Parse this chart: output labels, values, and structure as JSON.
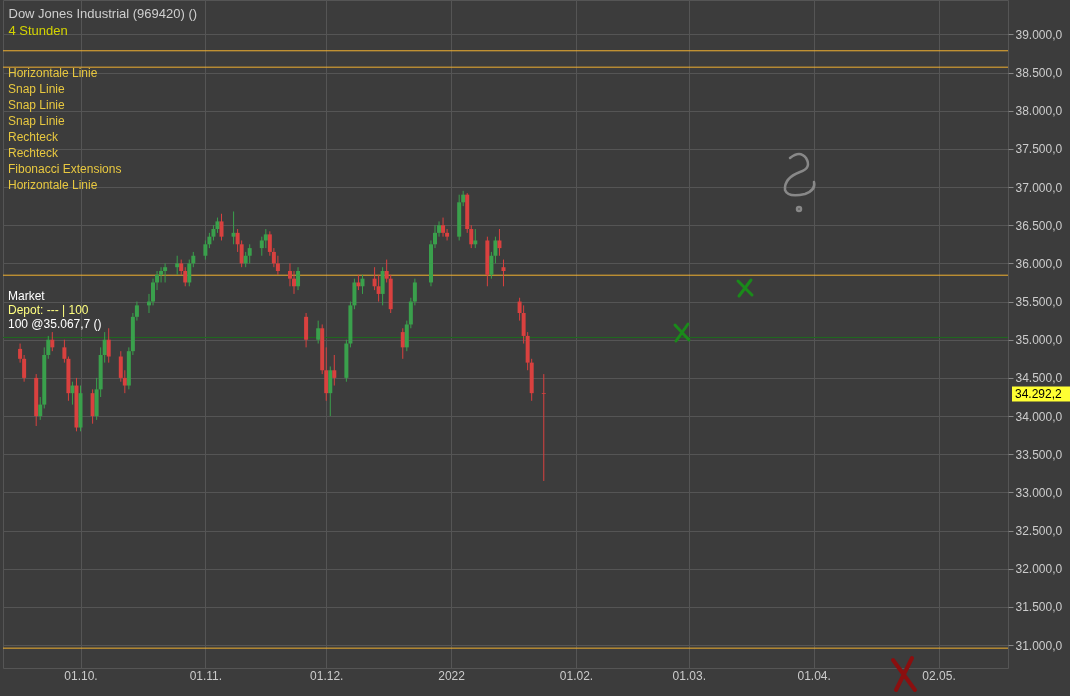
{
  "chart_data": {
    "type": "candlestick",
    "title": "Dow Jones Industrial (969420) ()",
    "subtitle": "4 Stunden",
    "x": [
      "2021-09-16",
      "2021-09-17",
      "2021-09-20",
      "2021-09-21",
      "2021-09-22",
      "2021-09-23",
      "2021-09-24",
      "2021-09-27",
      "2021-09-28",
      "2021-09-29",
      "2021-09-30",
      "2021-10-01",
      "2021-10-04",
      "2021-10-05",
      "2021-10-06",
      "2021-10-07",
      "2021-10-08",
      "2021-10-11",
      "2021-10-12",
      "2021-10-13",
      "2021-10-14",
      "2021-10-15",
      "2021-10-18",
      "2021-10-19",
      "2021-10-20",
      "2021-10-21",
      "2021-10-22",
      "2021-10-25",
      "2021-10-26",
      "2021-10-27",
      "2021-10-28",
      "2021-10-29",
      "2021-11-01",
      "2021-11-02",
      "2021-11-03",
      "2021-11-04",
      "2021-11-05",
      "2021-11-08",
      "2021-11-09",
      "2021-11-10",
      "2021-11-11",
      "2021-11-12",
      "2021-11-15",
      "2021-11-16",
      "2021-11-17",
      "2021-11-18",
      "2021-11-19",
      "2021-11-22",
      "2021-11-23",
      "2021-11-24",
      "2021-11-26",
      "2021-11-29",
      "2021-11-30",
      "2021-12-01",
      "2021-12-02",
      "2021-12-03",
      "2021-12-06",
      "2021-12-07",
      "2021-12-08",
      "2021-12-09",
      "2021-12-10",
      "2021-12-13",
      "2021-12-14",
      "2021-12-15",
      "2021-12-16",
      "2021-12-17",
      "2021-12-20",
      "2021-12-21",
      "2021-12-22",
      "2021-12-23",
      "2021-12-27",
      "2021-12-28",
      "2021-12-29",
      "2021-12-30",
      "2021-12-31",
      "2022-01-03",
      "2022-01-04",
      "2022-01-05",
      "2022-01-06",
      "2022-01-07",
      "2022-01-10",
      "2022-01-11",
      "2022-01-12",
      "2022-01-13",
      "2022-01-14",
      "2022-01-18",
      "2022-01-19",
      "2022-01-20",
      "2022-01-21",
      "2022-01-24"
    ],
    "ohlc": [
      [
        34880,
        34950,
        34700,
        34750
      ],
      [
        34750,
        34800,
        34450,
        34500
      ],
      [
        34500,
        34550,
        33870,
        34000
      ],
      [
        34000,
        34250,
        33950,
        34150
      ],
      [
        34150,
        34900,
        34100,
        34800
      ],
      [
        34800,
        35050,
        34750,
        35000
      ],
      [
        35000,
        35100,
        34850,
        34900
      ],
      [
        34900,
        35000,
        34700,
        34750
      ],
      [
        34750,
        34780,
        34200,
        34300
      ],
      [
        34300,
        34450,
        34150,
        34400
      ],
      [
        34400,
        34500,
        33800,
        33850
      ],
      [
        33850,
        34400,
        33800,
        34300
      ],
      [
        34300,
        34350,
        33900,
        34000
      ],
      [
        34000,
        34500,
        33950,
        34350
      ],
      [
        34350,
        34900,
        34250,
        34800
      ],
      [
        34800,
        35100,
        34700,
        35000
      ],
      [
        35000,
        35150,
        34700,
        34780
      ],
      [
        34780,
        34850,
        34450,
        34500
      ],
      [
        34500,
        34600,
        34300,
        34400
      ],
      [
        34400,
        34900,
        34350,
        34850
      ],
      [
        34850,
        35350,
        34800,
        35300
      ],
      [
        35300,
        35500,
        35250,
        35450
      ],
      [
        35450,
        35600,
        35350,
        35500
      ],
      [
        35500,
        35800,
        35450,
        35750
      ],
      [
        35750,
        35900,
        35650,
        35850
      ],
      [
        35850,
        35950,
        35750,
        35900
      ],
      [
        35900,
        36000,
        35750,
        35950
      ],
      [
        35950,
        36100,
        35850,
        36000
      ],
      [
        36000,
        36050,
        35850,
        35900
      ],
      [
        35900,
        35950,
        35700,
        35750
      ],
      [
        35750,
        36050,
        35700,
        36000
      ],
      [
        36000,
        36150,
        35950,
        36100
      ],
      [
        36100,
        36300,
        36050,
        36250
      ],
      [
        36250,
        36400,
        36200,
        36350
      ],
      [
        36350,
        36500,
        36300,
        36450
      ],
      [
        36450,
        36600,
        36400,
        36550
      ],
      [
        36550,
        36650,
        36300,
        36350
      ],
      [
        36350,
        36680,
        36250,
        36400
      ],
      [
        36400,
        36450,
        36150,
        36250
      ],
      [
        36250,
        36300,
        35950,
        36000
      ],
      [
        36000,
        36150,
        35950,
        36100
      ],
      [
        36100,
        36250,
        36000,
        36200
      ],
      [
        36200,
        36350,
        36100,
        36300
      ],
      [
        36300,
        36450,
        36200,
        36380
      ],
      [
        36380,
        36420,
        36100,
        36150
      ],
      [
        36150,
        36200,
        35950,
        36000
      ],
      [
        36000,
        36100,
        35850,
        35900
      ],
      [
        35900,
        36000,
        35700,
        35800
      ],
      [
        35800,
        35900,
        35600,
        35700
      ],
      [
        35700,
        35950,
        35650,
        35900
      ],
      [
        35300,
        35350,
        34900,
        35000
      ],
      [
        35000,
        35250,
        34950,
        35150
      ],
      [
        35150,
        35200,
        34550,
        34600
      ],
      [
        34600,
        34900,
        34200,
        34300
      ],
      [
        34300,
        34650,
        34000,
        34600
      ],
      [
        34600,
        34800,
        34400,
        34500
      ],
      [
        34500,
        35000,
        34450,
        34950
      ],
      [
        34950,
        35500,
        34900,
        35450
      ],
      [
        35450,
        35800,
        35400,
        35750
      ],
      [
        35750,
        35850,
        35650,
        35700
      ],
      [
        35700,
        35850,
        35600,
        35800
      ],
      [
        35800,
        35950,
        35650,
        35700
      ],
      [
        35700,
        35850,
        35500,
        35600
      ],
      [
        35600,
        35950,
        35450,
        35900
      ],
      [
        35900,
        36050,
        35750,
        35800
      ],
      [
        35800,
        35850,
        35350,
        35400
      ],
      [
        35100,
        35150,
        34750,
        34900
      ],
      [
        34900,
        35250,
        34850,
        35200
      ],
      [
        35200,
        35550,
        35150,
        35500
      ],
      [
        35500,
        35800,
        35450,
        35750
      ],
      [
        35750,
        36300,
        35700,
        36250
      ],
      [
        36250,
        36500,
        36200,
        36400
      ],
      [
        36400,
        36550,
        36350,
        36500
      ],
      [
        36500,
        36600,
        36350,
        36400
      ],
      [
        36400,
        36450,
        36300,
        36350
      ],
      [
        36350,
        36900,
        36300,
        36800
      ],
      [
        36800,
        36950,
        36750,
        36900
      ],
      [
        36900,
        36920,
        36400,
        36450
      ],
      [
        36450,
        36500,
        36200,
        36250
      ],
      [
        36250,
        36450,
        36200,
        36300
      ],
      [
        36300,
        36350,
        35700,
        35850
      ],
      [
        35850,
        36150,
        35800,
        36100
      ],
      [
        36100,
        36350,
        36000,
        36300
      ],
      [
        36300,
        36450,
        36100,
        36200
      ],
      [
        35950,
        36050,
        35700,
        35900
      ],
      [
        35500,
        35550,
        35250,
        35350
      ],
      [
        35350,
        35450,
        34950,
        35050
      ],
      [
        35050,
        35100,
        34600,
        34700
      ],
      [
        34700,
        34750,
        34200,
        34300
      ],
      [
        34300,
        34550,
        33150,
        34290
      ]
    ],
    "xlim": [
      "2021-09-13",
      "2022-05-18"
    ],
    "xticks": [
      {
        "value": "2021-10-01",
        "label": "01.10."
      },
      {
        "value": "2021-11-01",
        "label": "01.11."
      },
      {
        "value": "2021-12-01",
        "label": "01.12."
      },
      {
        "value": "2022-01-01",
        "label": "2022"
      },
      {
        "value": "2022-02-01",
        "label": "01.02."
      },
      {
        "value": "2022-03-01",
        "label": "01.03."
      },
      {
        "value": "2022-04-01",
        "label": "01.04."
      },
      {
        "value": "2022-05-02",
        "label": "02.05."
      }
    ],
    "ylim": [
      30700,
      39450
    ],
    "yticks": [
      {
        "value": 31000,
        "label": "31.000,0"
      },
      {
        "value": 31500,
        "label": "31.500,0"
      },
      {
        "value": 32000,
        "label": "32.000,0"
      },
      {
        "value": 32500,
        "label": "32.500,0"
      },
      {
        "value": 33000,
        "label": "33.000,0"
      },
      {
        "value": 33500,
        "label": "33.500,0"
      },
      {
        "value": 34000,
        "label": "34.000,0"
      },
      {
        "value": 34500,
        "label": "34.500,0"
      },
      {
        "value": 35000,
        "label": "35.000,0"
      },
      {
        "value": 35500,
        "label": "35.500,0"
      },
      {
        "value": 36000,
        "label": "36.000,0"
      },
      {
        "value": 36500,
        "label": "36.500,0"
      },
      {
        "value": 37000,
        "label": "37.000,0"
      },
      {
        "value": 37500,
        "label": "37.500,0"
      },
      {
        "value": 38000,
        "label": "38.000,0"
      },
      {
        "value": 38500,
        "label": "38.500,0"
      },
      {
        "value": 39000,
        "label": "39.000,0"
      }
    ],
    "grid": true,
    "ref_lines": [
      {
        "axis": "y",
        "value": 38785,
        "color": "#f0b030"
      },
      {
        "axis": "y",
        "value": 38570,
        "color": "#f0b030"
      },
      {
        "axis": "y",
        "value": 35845,
        "color": "#f0b030"
      },
      {
        "axis": "y",
        "value": 35030,
        "color": "#1f6b1f"
      },
      {
        "axis": "y",
        "value": 30960,
        "color": "#f0b030"
      }
    ],
    "annotations": [
      "Horizontale Linie",
      "Snap Linie",
      "Snap Linie",
      "Snap Linie",
      "Rechteck",
      "Rechteck",
      "Fibonacci Extensions",
      "Horizontale Linie",
      "Market",
      "Depot: --- | 100",
      "100 @35.067,7 ()",
      "34.292,2"
    ]
  }
}
